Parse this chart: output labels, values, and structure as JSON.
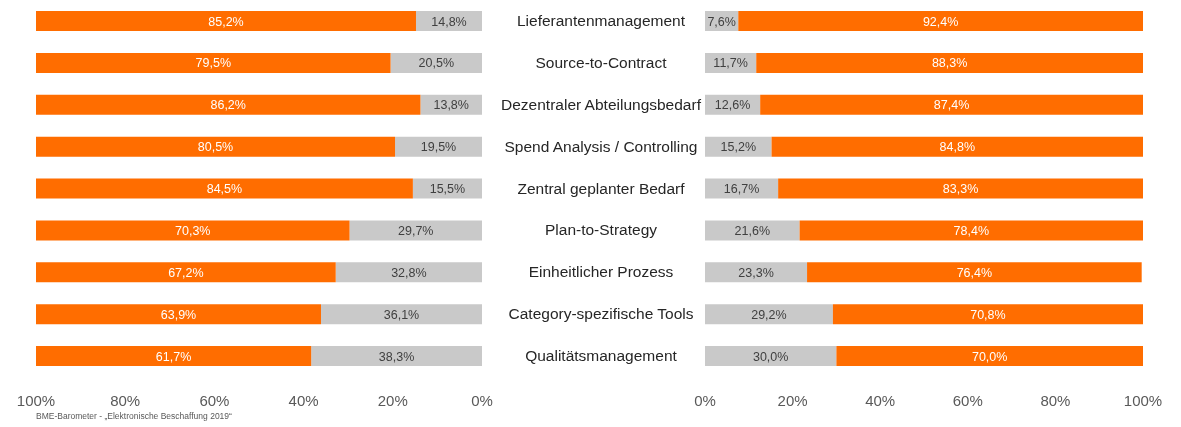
{
  "chart_data": [
    {
      "type": "bar",
      "orientation": "horizontal",
      "stacked": true,
      "categories": [
        "Lieferantenmanagement",
        "Source-to-Contract",
        "Dezentraler Abteilungsbedarf",
        "Spend Analysis / Controlling",
        "Zentral geplanter Bedarf",
        "Plan-to-Strategy",
        "Einheitlicher Prozess",
        "Category-spezifische Tools",
        "Qualitätsmanagement"
      ],
      "series": [
        {
          "color": "#c9c9c9",
          "values": [
            14.8,
            20.5,
            13.8,
            19.5,
            15.5,
            29.7,
            32.8,
            36.1,
            38.3
          ],
          "value_labels": [
            "14,8%",
            "20,5%",
            "13,8%",
            "19,5%",
            "15,5%",
            "29,7%",
            "32,8%",
            "36,1%",
            "38,3%"
          ]
        },
        {
          "color": "#ff6d00",
          "values": [
            85.2,
            79.5,
            86.2,
            80.5,
            84.5,
            70.3,
            67.2,
            63.9,
            61.7
          ],
          "value_labels": [
            "85,2%",
            "79,5%",
            "86,2%",
            "80,5%",
            "84,5%",
            "70,3%",
            "67,2%",
            "63,9%",
            "61,7%"
          ]
        }
      ],
      "xlim": [
        100,
        0
      ],
      "xticks": [
        {
          "value": 100,
          "label": "100%"
        },
        {
          "value": 80,
          "label": "80%"
        },
        {
          "value": 60,
          "label": "60%"
        },
        {
          "value": 40,
          "label": "40%"
        },
        {
          "value": 20,
          "label": "20%"
        },
        {
          "value": 0,
          "label": "0%"
        }
      ],
      "annotations": [
        "BME-Barometer - „Elektronische Beschaffung 2019“"
      ]
    },
    {
      "type": "bar",
      "orientation": "horizontal",
      "stacked": true,
      "tick_labels": "x",
      "categories": [
        null,
        null,
        null,
        null,
        null,
        null,
        null,
        null,
        null
      ],
      "series": [
        {
          "color": "#c9c9c9",
          "values": [
            7.6,
            11.7,
            12.6,
            15.2,
            16.7,
            21.6,
            23.3,
            29.2,
            30.0
          ],
          "value_labels": [
            "7,6%",
            "11,7%",
            "12,6%",
            "15,2%",
            "16,7%",
            "21,6%",
            "23,3%",
            "29,2%",
            "30,0%"
          ]
        },
        {
          "color": "#ff6d00",
          "values": [
            92.4,
            88.3,
            87.4,
            84.8,
            83.3,
            78.4,
            76.4,
            70.8,
            70.0
          ],
          "value_labels": [
            "92,4%",
            "88,3%",
            "87,4%",
            "84,8%",
            "83,3%",
            "78,4%",
            "76,4%",
            "70,8%",
            "70,0%"
          ]
        }
      ],
      "xlim": [
        0,
        100
      ],
      "xticks": [
        {
          "value": 0,
          "label": "0%"
        },
        {
          "value": 20,
          "label": "20%"
        },
        {
          "value": 40,
          "label": "40%"
        },
        {
          "value": 60,
          "label": "60%"
        },
        {
          "value": 80,
          "label": "80%"
        },
        {
          "value": 100,
          "label": "100%"
        }
      ]
    }
  ]
}
